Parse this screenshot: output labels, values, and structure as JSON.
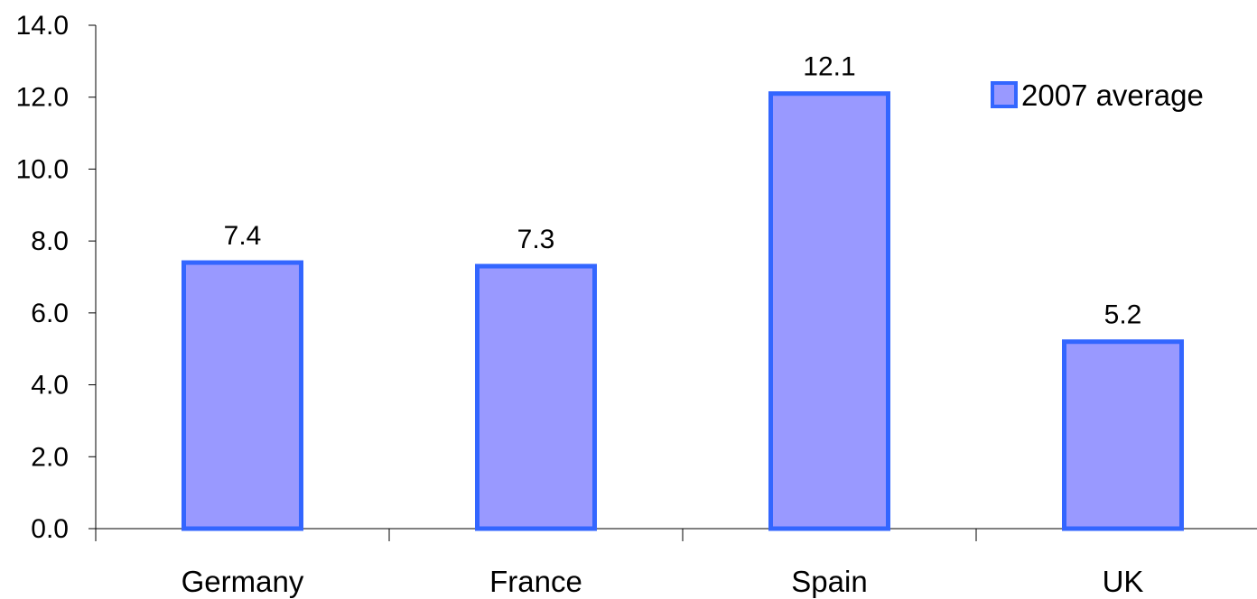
{
  "chart_data": {
    "type": "bar",
    "title": "",
    "xlabel": "",
    "ylabel": "",
    "categories": [
      "Germany",
      "France",
      "Spain",
      "UK"
    ],
    "series": [
      {
        "name": "2007 average",
        "values": [
          7.4,
          7.3,
          12.1,
          5.2
        ]
      }
    ],
    "data_labels": [
      "7.4",
      "7.3",
      "12.1",
      "5.2"
    ],
    "yticks": [
      "0.0",
      "2.0",
      "4.0",
      "6.0",
      "8.0",
      "10.0",
      "12.0",
      "14.0"
    ],
    "ylim": [
      0,
      14
    ],
    "grid": false,
    "legend": {
      "position": "top-right",
      "label": "2007 average"
    },
    "colors": {
      "bar_fill": "#9999ff",
      "bar_stroke": "#3366ff",
      "axis": "#000000"
    }
  }
}
